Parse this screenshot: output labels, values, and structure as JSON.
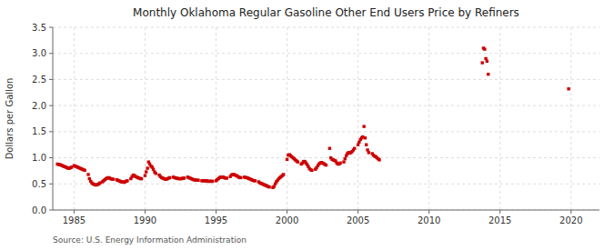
{
  "chart_data": {
    "type": "scatter",
    "title": "Monthly Oklahoma Regular Gasoline Other End Users Price by Refiners",
    "ylabel": "Dollars per Gallon",
    "annotations": [
      "Source: U.S. Energy Information Administration"
    ],
    "color": "#cc0000",
    "marker": "square",
    "grid": true,
    "xlim": [
      1983.5,
      2022
    ],
    "ylim": [
      0.0,
      3.5
    ],
    "xticks": [
      1985,
      1990,
      1995,
      2000,
      2005,
      2010,
      2015,
      2020
    ],
    "yticks": [
      {
        "value": 0.0,
        "label": "0.0"
      },
      0.5,
      {
        "value": 1.0,
        "label": "1.0"
      },
      1.5,
      {
        "value": 2.0,
        "label": "2.0"
      },
      2.5,
      {
        "value": 3.0,
        "label": "3.0"
      },
      3.5
    ],
    "x": [
      1983.83,
      1983.92,
      1984.0,
      1984.08,
      1984.17,
      1984.25,
      1984.33,
      1984.42,
      1984.5,
      1984.58,
      1984.67,
      1984.75,
      1984.83,
      1985.0,
      1985.08,
      1985.17,
      1985.25,
      1985.33,
      1985.42,
      1985.5,
      1985.58,
      1985.67,
      1985.75,
      1986.0,
      1986.08,
      1986.17,
      1986.25,
      1986.33,
      1986.42,
      1986.5,
      1986.58,
      1986.67,
      1986.75,
      1986.83,
      1987.0,
      1987.08,
      1987.17,
      1987.25,
      1987.33,
      1987.42,
      1987.5,
      1987.58,
      1987.67,
      1987.75,
      1988.0,
      1988.08,
      1988.17,
      1988.25,
      1988.33,
      1988.42,
      1988.5,
      1988.58,
      1988.67,
      1988.75,
      1989.0,
      1989.08,
      1989.17,
      1989.25,
      1989.33,
      1989.42,
      1989.5,
      1989.58,
      1989.67,
      1989.75,
      1990.0,
      1990.08,
      1990.17,
      1990.25,
      1990.33,
      1990.42,
      1990.5,
      1990.58,
      1990.67,
      1990.75,
      1991.0,
      1991.08,
      1991.17,
      1991.25,
      1991.33,
      1991.42,
      1991.5,
      1991.58,
      1991.67,
      1991.75,
      1992.0,
      1992.08,
      1992.17,
      1992.25,
      1992.33,
      1992.42,
      1992.5,
      1992.58,
      1992.67,
      1992.75,
      1993.0,
      1993.08,
      1993.17,
      1993.25,
      1993.33,
      1993.42,
      1993.5,
      1993.58,
      1993.67,
      1993.75,
      1994.0,
      1994.08,
      1994.17,
      1994.25,
      1994.33,
      1994.42,
      1994.5,
      1994.58,
      1994.67,
      1994.75,
      1995.0,
      1995.08,
      1995.17,
      1995.25,
      1995.33,
      1995.42,
      1995.5,
      1995.58,
      1995.67,
      1995.75,
      1996.0,
      1996.08,
      1996.17,
      1996.25,
      1996.33,
      1996.42,
      1996.5,
      1996.58,
      1996.67,
      1996.75,
      1997.0,
      1997.08,
      1997.17,
      1997.25,
      1997.33,
      1997.42,
      1997.5,
      1997.58,
      1997.67,
      1997.75,
      1998.0,
      1998.08,
      1998.17,
      1998.25,
      1998.33,
      1998.42,
      1998.5,
      1998.58,
      1998.67,
      1998.75,
      1999.0,
      1999.08,
      1999.17,
      1999.25,
      1999.33,
      1999.42,
      1999.5,
      1999.58,
      1999.67,
      1999.75,
      2000.0,
      2000.08,
      2000.17,
      2000.25,
      2000.33,
      2000.42,
      2000.5,
      2000.58,
      2000.67,
      2000.75,
      2001.0,
      2001.08,
      2001.17,
      2001.25,
      2001.33,
      2001.42,
      2001.5,
      2001.58,
      2001.67,
      2001.75,
      2002.0,
      2002.08,
      2002.17,
      2002.25,
      2002.33,
      2002.42,
      2002.5,
      2002.58,
      2002.67,
      2002.75,
      2003.0,
      2003.08,
      2003.17,
      2003.25,
      2003.33,
      2003.42,
      2003.5,
      2003.58,
      2003.67,
      2003.75,
      2004.0,
      2004.08,
      2004.17,
      2004.25,
      2004.33,
      2004.42,
      2004.5,
      2004.58,
      2004.67,
      2004.75,
      2005.0,
      2005.08,
      2005.17,
      2005.25,
      2005.33,
      2005.42,
      2005.5,
      2005.58,
      2005.67,
      2005.75,
      2006.0,
      2006.08,
      2006.17,
      2006.25,
      2006.33,
      2006.42,
      2006.5,
      2013.75,
      2013.83,
      2013.92,
      2014.0,
      2014.08,
      2014.17,
      2019.83
    ],
    "values": [
      0.88,
      0.87,
      0.87,
      0.86,
      0.85,
      0.84,
      0.83,
      0.82,
      0.81,
      0.8,
      0.8,
      0.81,
      0.82,
      0.85,
      0.84,
      0.83,
      0.82,
      0.81,
      0.8,
      0.79,
      0.78,
      0.77,
      0.76,
      0.68,
      0.6,
      0.55,
      0.52,
      0.5,
      0.49,
      0.48,
      0.48,
      0.49,
      0.5,
      0.52,
      0.54,
      0.56,
      0.58,
      0.6,
      0.61,
      0.62,
      0.61,
      0.6,
      0.59,
      0.59,
      0.58,
      0.57,
      0.56,
      0.55,
      0.54,
      0.54,
      0.53,
      0.54,
      0.55,
      0.56,
      0.6,
      0.64,
      0.67,
      0.66,
      0.64,
      0.63,
      0.62,
      0.61,
      0.6,
      0.6,
      0.66,
      0.73,
      0.8,
      0.92,
      0.88,
      0.84,
      0.82,
      0.78,
      0.73,
      0.7,
      0.67,
      0.64,
      0.62,
      0.61,
      0.6,
      0.59,
      0.59,
      0.6,
      0.61,
      0.62,
      0.63,
      0.62,
      0.61,
      0.61,
      0.6,
      0.6,
      0.6,
      0.6,
      0.61,
      0.61,
      0.63,
      0.62,
      0.61,
      0.6,
      0.59,
      0.58,
      0.58,
      0.57,
      0.57,
      0.57,
      0.56,
      0.56,
      0.56,
      0.56,
      0.56,
      0.55,
      0.55,
      0.55,
      0.55,
      0.55,
      0.56,
      0.58,
      0.6,
      0.62,
      0.63,
      0.63,
      0.63,
      0.62,
      0.61,
      0.61,
      0.64,
      0.67,
      0.68,
      0.68,
      0.67,
      0.66,
      0.65,
      0.63,
      0.62,
      0.62,
      0.63,
      0.62,
      0.62,
      0.61,
      0.6,
      0.59,
      0.58,
      0.57,
      0.56,
      0.56,
      0.54,
      0.52,
      0.51,
      0.5,
      0.49,
      0.48,
      0.47,
      0.46,
      0.45,
      0.44,
      0.43,
      0.45,
      0.5,
      0.54,
      0.57,
      0.6,
      0.62,
      0.64,
      0.66,
      0.68,
      0.97,
      1.05,
      1.06,
      1.04,
      1.02,
      1.0,
      0.98,
      0.96,
      0.94,
      0.92,
      0.88,
      0.9,
      0.93,
      0.93,
      0.9,
      0.87,
      0.83,
      0.79,
      0.77,
      0.76,
      0.78,
      0.81,
      0.85,
      0.88,
      0.9,
      0.91,
      0.9,
      0.89,
      0.87,
      0.86,
      1.18,
      1.0,
      0.97,
      0.96,
      0.95,
      0.94,
      0.9,
      0.88,
      0.88,
      0.9,
      0.92,
      0.98,
      1.04,
      1.08,
      1.1,
      1.09,
      1.1,
      1.12,
      1.15,
      1.18,
      1.25,
      1.3,
      1.35,
      1.38,
      1.4,
      1.6,
      1.38,
      1.25,
      1.15,
      1.1,
      1.08,
      1.05,
      1.03,
      1.02,
      1.0,
      0.98,
      0.96,
      2.82,
      3.1,
      3.08,
      2.9,
      2.85,
      2.6,
      2.32
    ]
  }
}
